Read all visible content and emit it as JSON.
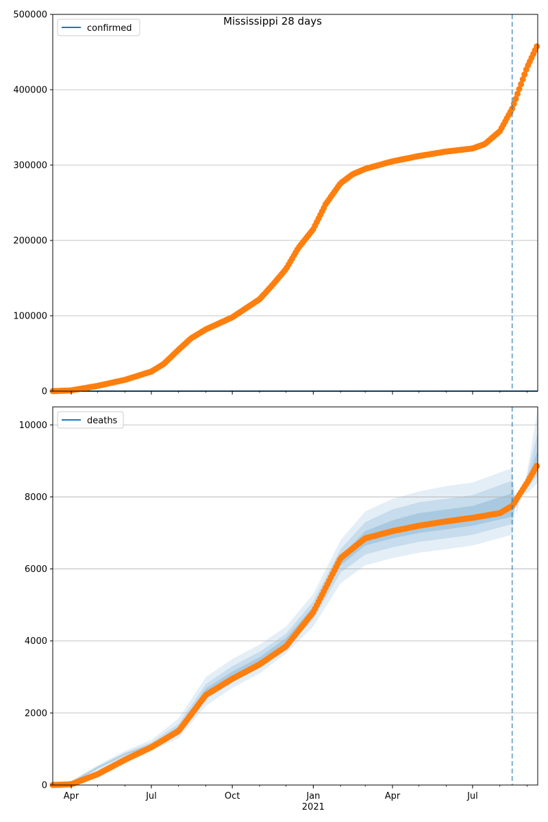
{
  "chart_data": [
    {
      "type": "scatter",
      "title": "Mississippi 28 days",
      "xlabel": "",
      "ylabel": "",
      "ylim": [
        0,
        500000
      ],
      "yticks": [
        0,
        100000,
        200000,
        300000,
        400000,
        500000
      ],
      "ytick_labels": [
        "0",
        "100000",
        "200000",
        "300000",
        "400000",
        "500000"
      ],
      "xlim": [
        "2020-03-11",
        "2021-09-13"
      ],
      "xticks": [
        "2020-04-01",
        "2020-07-01",
        "2020-10-01",
        "2021-01-01",
        "2021-04-01",
        "2021-07-01"
      ],
      "xtick_labels": [
        "Apr",
        "Jul",
        "Oct",
        "Jan",
        "Apr",
        "Jul"
      ],
      "show_xtick_labels": false,
      "grid": "horizontal",
      "legend": {
        "position": "top-left",
        "entries": [
          {
            "label": "confirmed",
            "color": "#1f77b4"
          }
        ]
      },
      "vline_date": "2021-08-15",
      "series": [
        {
          "kind": "line",
          "color": "#1f77b4",
          "points": [
            [
              "2020-03-11",
              0
            ],
            [
              "2021-09-13",
              0
            ]
          ]
        },
        {
          "kind": "scatter",
          "color": "#ff7f0e",
          "points": [
            [
              "2020-03-11",
              0
            ],
            [
              "2020-04-01",
              1000
            ],
            [
              "2020-05-01",
              7000
            ],
            [
              "2020-06-01",
              15000
            ],
            [
              "2020-07-01",
              26000
            ],
            [
              "2020-07-15",
              36000
            ],
            [
              "2020-08-01",
              55000
            ],
            [
              "2020-08-15",
              70000
            ],
            [
              "2020-09-01",
              82000
            ],
            [
              "2020-10-01",
              98000
            ],
            [
              "2020-11-01",
              122000
            ],
            [
              "2020-11-15",
              140000
            ],
            [
              "2020-12-01",
              162000
            ],
            [
              "2020-12-15",
              190000
            ],
            [
              "2021-01-01",
              215000
            ],
            [
              "2021-01-15",
              248000
            ],
            [
              "2021-02-01",
              276000
            ],
            [
              "2021-02-15",
              288000
            ],
            [
              "2021-03-01",
              295000
            ],
            [
              "2021-04-01",
              305000
            ],
            [
              "2021-05-01",
              312000
            ],
            [
              "2021-06-01",
              318000
            ],
            [
              "2021-07-01",
              322000
            ],
            [
              "2021-07-15",
              328000
            ],
            [
              "2021-08-01",
              345000
            ],
            [
              "2021-08-15",
              375000
            ],
            [
              "2021-09-01",
              430000
            ],
            [
              "2021-09-13",
              460000
            ]
          ]
        }
      ]
    },
    {
      "type": "scatter",
      "title": "",
      "xlabel": "2021",
      "ylabel": "",
      "ylim": [
        0,
        10500
      ],
      "yticks": [
        0,
        2000,
        4000,
        6000,
        8000,
        10000
      ],
      "ytick_labels": [
        "0",
        "2000",
        "4000",
        "6000",
        "8000",
        "10000"
      ],
      "xlim": [
        "2020-03-11",
        "2021-09-13"
      ],
      "xticks": [
        "2020-04-01",
        "2020-07-01",
        "2020-10-01",
        "2021-01-01",
        "2021-04-01",
        "2021-07-01"
      ],
      "xtick_labels": [
        "Apr",
        "Jul",
        "Oct",
        "Jan",
        "Apr",
        "Jul"
      ],
      "show_xtick_labels": true,
      "grid": "horizontal",
      "legend": {
        "position": "top-left",
        "entries": [
          {
            "label": "deaths",
            "color": "#1f77b4"
          }
        ]
      },
      "vline_date": "2021-08-15",
      "bands": [
        {
          "color": "#1f77b4",
          "opacity": 0.12,
          "lower": [
            [
              "2020-03-11",
              0
            ],
            [
              "2020-04-01",
              0
            ],
            [
              "2020-05-01",
              400
            ],
            [
              "2020-06-01",
              750
            ],
            [
              "2020-07-01",
              950
            ],
            [
              "2020-08-01",
              1300
            ],
            [
              "2020-09-01",
              2200
            ],
            [
              "2020-10-01",
              2700
            ],
            [
              "2020-11-01",
              3100
            ],
            [
              "2020-12-01",
              3650
            ],
            [
              "2021-01-01",
              4400
            ],
            [
              "2021-02-01",
              5600
            ],
            [
              "2021-03-01",
              6100
            ],
            [
              "2021-04-01",
              6300
            ],
            [
              "2021-05-01",
              6450
            ],
            [
              "2021-06-01",
              6550
            ],
            [
              "2021-07-01",
              6650
            ],
            [
              "2021-08-15",
              6950
            ],
            [
              "2021-08-20",
              8000
            ],
            [
              "2021-09-01",
              8100
            ],
            [
              "2021-09-13",
              8400
            ]
          ],
          "upper": [
            [
              "2020-03-11",
              50
            ],
            [
              "2020-04-01",
              120
            ],
            [
              "2020-05-01",
              550
            ],
            [
              "2020-06-01",
              950
            ],
            [
              "2020-07-01",
              1250
            ],
            [
              "2020-08-01",
              1850
            ],
            [
              "2020-09-01",
              3000
            ],
            [
              "2020-10-01",
              3500
            ],
            [
              "2020-11-01",
              3900
            ],
            [
              "2020-12-01",
              4400
            ],
            [
              "2021-01-01",
              5300
            ],
            [
              "2021-02-01",
              6800
            ],
            [
              "2021-03-01",
              7600
            ],
            [
              "2021-04-01",
              7950
            ],
            [
              "2021-05-01",
              8150
            ],
            [
              "2021-06-01",
              8300
            ],
            [
              "2021-07-01",
              8400
            ],
            [
              "2021-08-15",
              8800
            ],
            [
              "2021-08-20",
              7500
            ],
            [
              "2021-09-01",
              8700
            ],
            [
              "2021-09-13",
              10450
            ]
          ]
        },
        {
          "color": "#1f77b4",
          "opacity": 0.15,
          "lower": [
            [
              "2020-03-11",
              0
            ],
            [
              "2020-04-01",
              20
            ],
            [
              "2020-05-01",
              440
            ],
            [
              "2020-06-01",
              800
            ],
            [
              "2020-07-01",
              1020
            ],
            [
              "2020-08-01",
              1420
            ],
            [
              "2020-09-01",
              2400
            ],
            [
              "2020-10-01",
              2850
            ],
            [
              "2020-11-01",
              3250
            ],
            [
              "2020-12-01",
              3800
            ],
            [
              "2021-01-01",
              4600
            ],
            [
              "2021-02-01",
              5900
            ],
            [
              "2021-03-01",
              6400
            ],
            [
              "2021-04-01",
              6600
            ],
            [
              "2021-05-01",
              6750
            ],
            [
              "2021-06-01",
              6850
            ],
            [
              "2021-07-01",
              6950
            ],
            [
              "2021-08-15",
              7250
            ],
            [
              "2021-08-20",
              8000
            ],
            [
              "2021-09-01",
              8250
            ],
            [
              "2021-09-13",
              8600
            ]
          ],
          "upper": [
            [
              "2020-03-11",
              30
            ],
            [
              "2020-04-01",
              100
            ],
            [
              "2020-05-01",
              520
            ],
            [
              "2020-06-01",
              900
            ],
            [
              "2020-07-01",
              1180
            ],
            [
              "2020-08-01",
              1700
            ],
            [
              "2020-09-01",
              2800
            ],
            [
              "2020-10-01",
              3300
            ],
            [
              "2020-11-01",
              3700
            ],
            [
              "2020-12-01",
              4200
            ],
            [
              "2021-01-01",
              5100
            ],
            [
              "2021-02-01",
              6550
            ],
            [
              "2021-03-01",
              7300
            ],
            [
              "2021-04-01",
              7650
            ],
            [
              "2021-05-01",
              7850
            ],
            [
              "2021-06-01",
              7950
            ],
            [
              "2021-07-01",
              8050
            ],
            [
              "2021-08-15",
              8450
            ],
            [
              "2021-08-20",
              7700
            ],
            [
              "2021-09-01",
              8600
            ],
            [
              "2021-09-13",
              9800
            ]
          ]
        },
        {
          "color": "#1f77b4",
          "opacity": 0.18,
          "lower": [
            [
              "2020-03-11",
              0
            ],
            [
              "2020-04-01",
              40
            ],
            [
              "2020-05-01",
              470
            ],
            [
              "2020-06-01",
              840
            ],
            [
              "2020-07-01",
              1070
            ],
            [
              "2020-08-01",
              1520
            ],
            [
              "2020-09-01",
              2550
            ],
            [
              "2020-10-01",
              2980
            ],
            [
              "2020-11-01",
              3380
            ],
            [
              "2020-12-01",
              3920
            ],
            [
              "2021-01-01",
              4750
            ],
            [
              "2021-02-01",
              6100
            ],
            [
              "2021-03-01",
              6650
            ],
            [
              "2021-04-01",
              6850
            ],
            [
              "2021-05-01",
              7000
            ],
            [
              "2021-06-01",
              7100
            ],
            [
              "2021-07-01",
              7200
            ],
            [
              "2021-08-15",
              7450
            ],
            [
              "2021-08-20",
              8000
            ],
            [
              "2021-09-01",
              8350
            ],
            [
              "2021-09-13",
              8750
            ]
          ],
          "upper": [
            [
              "2020-03-11",
              20
            ],
            [
              "2020-04-01",
              80
            ],
            [
              "2020-05-01",
              500
            ],
            [
              "2020-06-01",
              870
            ],
            [
              "2020-07-01",
              1130
            ],
            [
              "2020-08-01",
              1620
            ],
            [
              "2020-09-01",
              2680
            ],
            [
              "2020-10-01",
              3150
            ],
            [
              "2020-11-01",
              3550
            ],
            [
              "2020-12-01",
              4080
            ],
            [
              "2021-01-01",
              4950
            ],
            [
              "2021-02-01",
              6350
            ],
            [
              "2021-03-01",
              7050
            ],
            [
              "2021-04-01",
              7350
            ],
            [
              "2021-05-01",
              7550
            ],
            [
              "2021-06-01",
              7650
            ],
            [
              "2021-07-01",
              7750
            ],
            [
              "2021-08-15",
              8100
            ],
            [
              "2021-08-20",
              7850
            ],
            [
              "2021-09-01",
              8500
            ],
            [
              "2021-09-13",
              9300
            ]
          ]
        }
      ],
      "series": [
        {
          "kind": "scatter",
          "color": "#ff7f0e",
          "points": [
            [
              "2020-03-11",
              0
            ],
            [
              "2020-04-01",
              20
            ],
            [
              "2020-05-01",
              300
            ],
            [
              "2020-06-01",
              700
            ],
            [
              "2020-07-01",
              1050
            ],
            [
              "2020-08-01",
              1500
            ],
            [
              "2020-09-01",
              2500
            ],
            [
              "2020-10-01",
              2950
            ],
            [
              "2020-11-01",
              3350
            ],
            [
              "2020-12-01",
              3850
            ],
            [
              "2021-01-01",
              4800
            ],
            [
              "2021-02-01",
              6300
            ],
            [
              "2021-03-01",
              6850
            ],
            [
              "2021-04-01",
              7050
            ],
            [
              "2021-05-01",
              7200
            ],
            [
              "2021-06-01",
              7320
            ],
            [
              "2021-07-01",
              7420
            ],
            [
              "2021-08-01",
              7550
            ],
            [
              "2021-08-15",
              7750
            ],
            [
              "2021-09-01",
              8400
            ],
            [
              "2021-09-13",
              8900
            ]
          ]
        }
      ]
    }
  ]
}
